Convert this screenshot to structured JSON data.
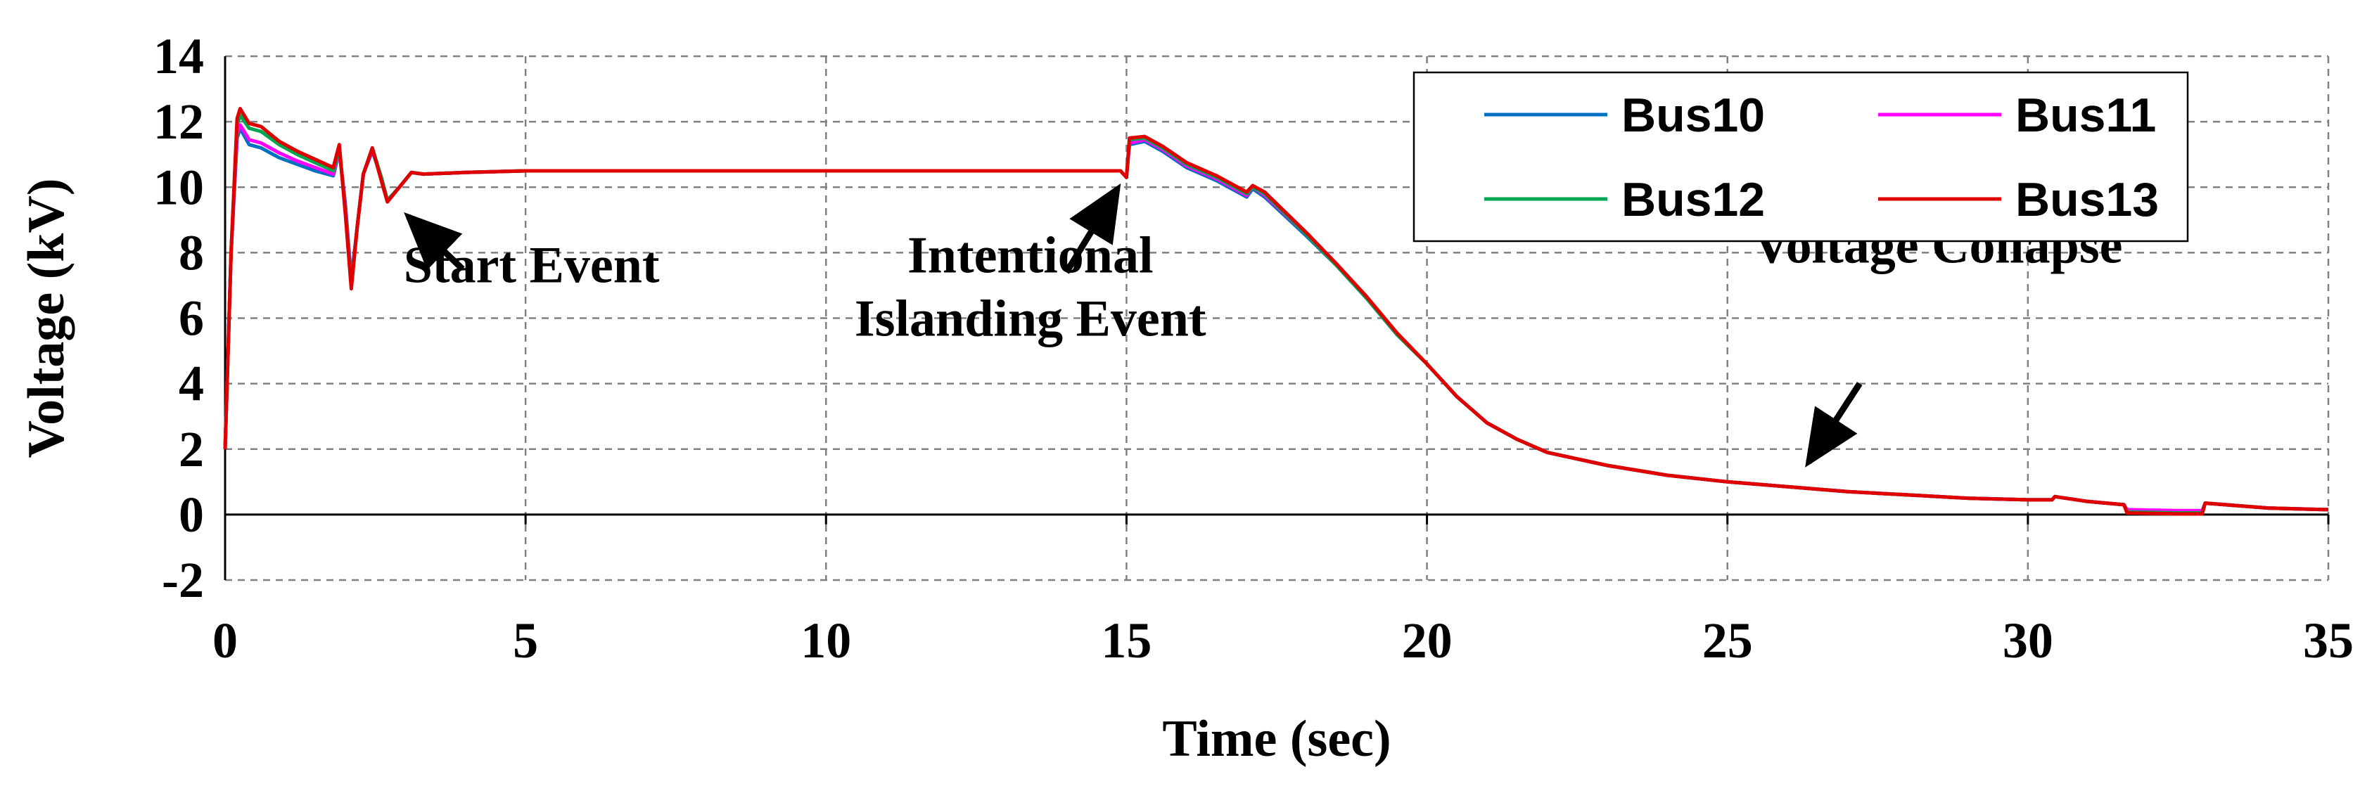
{
  "chart_data": {
    "type": "line",
    "title": "",
    "xlabel": "Time (sec)",
    "ylabel": "Voltage (kV)",
    "xlim": [
      0,
      35
    ],
    "ylim": [
      -2,
      14
    ],
    "xticks": [
      0,
      5,
      10,
      15,
      20,
      25,
      30,
      35
    ],
    "yticks": [
      -2,
      0,
      2,
      4,
      6,
      8,
      10,
      12,
      14
    ],
    "grid": true,
    "legend_position": "top-right",
    "series": [
      {
        "name": "Bus10",
        "color": "#0070C0",
        "points": [
          [
            0,
            2.0
          ],
          [
            0.1,
            8.0
          ],
          [
            0.2,
            11.5
          ],
          [
            0.25,
            11.8
          ],
          [
            0.4,
            11.3
          ],
          [
            0.6,
            11.2
          ],
          [
            0.9,
            10.9
          ],
          [
            1.2,
            10.7
          ],
          [
            1.5,
            10.5
          ],
          [
            1.8,
            10.35
          ],
          [
            1.9,
            11.1
          ],
          [
            2.0,
            9.5
          ],
          [
            2.1,
            7.2
          ],
          [
            2.2,
            8.8
          ],
          [
            2.3,
            10.4
          ],
          [
            2.45,
            11.1
          ],
          [
            2.6,
            10.3
          ],
          [
            2.7,
            9.6
          ],
          [
            2.9,
            10.0
          ],
          [
            3.1,
            10.45
          ],
          [
            3.3,
            10.4
          ],
          [
            4,
            10.45
          ],
          [
            5,
            10.5
          ],
          [
            10,
            10.5
          ],
          [
            14.9,
            10.5
          ],
          [
            15.0,
            10.3
          ],
          [
            15.05,
            11.3
          ],
          [
            15.3,
            11.4
          ],
          [
            15.6,
            11.1
          ],
          [
            16.0,
            10.6
          ],
          [
            16.5,
            10.2
          ],
          [
            17.0,
            9.7
          ],
          [
            17.1,
            9.95
          ],
          [
            17.3,
            9.7
          ],
          [
            18.0,
            8.5
          ],
          [
            18.5,
            7.6
          ],
          [
            19.0,
            6.6
          ],
          [
            19.5,
            5.5
          ],
          [
            20.0,
            4.6
          ],
          [
            20.5,
            3.6
          ],
          [
            21.0,
            2.8
          ],
          [
            21.5,
            2.3
          ],
          [
            22.0,
            1.9
          ],
          [
            23.0,
            1.5
          ],
          [
            24.0,
            1.2
          ],
          [
            25.0,
            1.0
          ],
          [
            26.0,
            0.85
          ],
          [
            27.0,
            0.7
          ],
          [
            28.0,
            0.6
          ],
          [
            29.0,
            0.5
          ],
          [
            30.0,
            0.45
          ],
          [
            30.4,
            0.45
          ],
          [
            30.45,
            0.55
          ],
          [
            31.0,
            0.4
          ],
          [
            31.6,
            0.3
          ],
          [
            31.65,
            0.1
          ],
          [
            32.5,
            0.05
          ],
          [
            32.9,
            0.05
          ],
          [
            32.95,
            0.35
          ],
          [
            34.0,
            0.2
          ],
          [
            35.0,
            0.15
          ]
        ]
      },
      {
        "name": "Bus11",
        "color": "#FF00FF",
        "points": [
          [
            0,
            2.0
          ],
          [
            0.1,
            8.0
          ],
          [
            0.2,
            11.6
          ],
          [
            0.25,
            11.9
          ],
          [
            0.4,
            11.45
          ],
          [
            0.6,
            11.35
          ],
          [
            0.9,
            11.05
          ],
          [
            1.2,
            10.8
          ],
          [
            1.5,
            10.6
          ],
          [
            1.8,
            10.4
          ],
          [
            1.9,
            11.15
          ],
          [
            2.0,
            9.4
          ],
          [
            2.1,
            7.1
          ],
          [
            2.2,
            8.8
          ],
          [
            2.3,
            10.4
          ],
          [
            2.45,
            11.15
          ],
          [
            2.6,
            10.3
          ],
          [
            2.7,
            9.6
          ],
          [
            2.9,
            10.0
          ],
          [
            3.1,
            10.45
          ],
          [
            3.3,
            10.4
          ],
          [
            4,
            10.45
          ],
          [
            5,
            10.5
          ],
          [
            10,
            10.5
          ],
          [
            14.9,
            10.5
          ],
          [
            15.0,
            10.3
          ],
          [
            15.05,
            11.35
          ],
          [
            15.3,
            11.45
          ],
          [
            15.6,
            11.15
          ],
          [
            16.0,
            10.65
          ],
          [
            16.5,
            10.25
          ],
          [
            17.0,
            9.75
          ],
          [
            17.1,
            10.0
          ],
          [
            17.3,
            9.75
          ],
          [
            18.0,
            8.55
          ],
          [
            18.5,
            7.6
          ],
          [
            19.0,
            6.6
          ],
          [
            19.5,
            5.5
          ],
          [
            20.0,
            4.6
          ],
          [
            20.5,
            3.6
          ],
          [
            21.0,
            2.8
          ],
          [
            21.5,
            2.3
          ],
          [
            22.0,
            1.9
          ],
          [
            23.0,
            1.5
          ],
          [
            24.0,
            1.2
          ],
          [
            25.0,
            1.0
          ],
          [
            26.0,
            0.85
          ],
          [
            27.0,
            0.7
          ],
          [
            28.0,
            0.6
          ],
          [
            29.0,
            0.5
          ],
          [
            30.0,
            0.45
          ],
          [
            30.4,
            0.45
          ],
          [
            30.45,
            0.55
          ],
          [
            31.0,
            0.4
          ],
          [
            31.6,
            0.3
          ],
          [
            31.65,
            0.15
          ],
          [
            32.5,
            0.12
          ],
          [
            32.9,
            0.12
          ],
          [
            32.95,
            0.35
          ],
          [
            34.0,
            0.2
          ],
          [
            35.0,
            0.15
          ]
        ]
      },
      {
        "name": "Bus12",
        "color": "#00A650",
        "points": [
          [
            0,
            2.0
          ],
          [
            0.1,
            8.0
          ],
          [
            0.2,
            11.9
          ],
          [
            0.25,
            12.2
          ],
          [
            0.4,
            11.8
          ],
          [
            0.6,
            11.7
          ],
          [
            0.9,
            11.3
          ],
          [
            1.2,
            11.0
          ],
          [
            1.5,
            10.75
          ],
          [
            1.8,
            10.5
          ],
          [
            1.9,
            11.2
          ],
          [
            2.0,
            9.3
          ],
          [
            2.1,
            7.0
          ],
          [
            2.2,
            8.8
          ],
          [
            2.3,
            10.4
          ],
          [
            2.45,
            11.2
          ],
          [
            2.6,
            10.3
          ],
          [
            2.7,
            9.6
          ],
          [
            2.9,
            10.0
          ],
          [
            3.1,
            10.45
          ],
          [
            3.3,
            10.4
          ],
          [
            4,
            10.45
          ],
          [
            5,
            10.5
          ],
          [
            10,
            10.5
          ],
          [
            14.9,
            10.5
          ],
          [
            15.0,
            10.3
          ],
          [
            15.05,
            11.45
          ],
          [
            15.3,
            11.5
          ],
          [
            15.6,
            11.2
          ],
          [
            16.0,
            10.7
          ],
          [
            16.5,
            10.3
          ],
          [
            17.0,
            9.8
          ],
          [
            17.1,
            10.0
          ],
          [
            17.3,
            9.8
          ],
          [
            18.0,
            8.55
          ],
          [
            18.5,
            7.6
          ],
          [
            19.0,
            6.6
          ],
          [
            19.5,
            5.5
          ],
          [
            20.0,
            4.6
          ],
          [
            20.5,
            3.6
          ],
          [
            21.0,
            2.8
          ],
          [
            21.5,
            2.3
          ],
          [
            22.0,
            1.9
          ],
          [
            23.0,
            1.5
          ],
          [
            24.0,
            1.2
          ],
          [
            25.0,
            1.0
          ],
          [
            26.0,
            0.85
          ],
          [
            27.0,
            0.7
          ],
          [
            28.0,
            0.6
          ],
          [
            29.0,
            0.5
          ],
          [
            30.0,
            0.45
          ],
          [
            30.4,
            0.45
          ],
          [
            30.45,
            0.55
          ],
          [
            31.0,
            0.4
          ],
          [
            31.6,
            0.3
          ],
          [
            31.65,
            0.08
          ],
          [
            32.5,
            0.05
          ],
          [
            32.9,
            0.05
          ],
          [
            32.95,
            0.35
          ],
          [
            34.0,
            0.2
          ],
          [
            35.0,
            0.15
          ]
        ]
      },
      {
        "name": "Bus13",
        "color": "#E00000",
        "points": [
          [
            0,
            2.0
          ],
          [
            0.1,
            8.0
          ],
          [
            0.2,
            12.1
          ],
          [
            0.25,
            12.4
          ],
          [
            0.4,
            11.95
          ],
          [
            0.6,
            11.85
          ],
          [
            0.9,
            11.4
          ],
          [
            1.2,
            11.1
          ],
          [
            1.5,
            10.85
          ],
          [
            1.8,
            10.6
          ],
          [
            1.9,
            11.3
          ],
          [
            2.0,
            9.2
          ],
          [
            2.1,
            6.9
          ],
          [
            2.2,
            8.8
          ],
          [
            2.3,
            10.4
          ],
          [
            2.45,
            11.2
          ],
          [
            2.6,
            10.2
          ],
          [
            2.7,
            9.55
          ],
          [
            2.9,
            10.0
          ],
          [
            3.1,
            10.45
          ],
          [
            3.3,
            10.4
          ],
          [
            4,
            10.45
          ],
          [
            5,
            10.5
          ],
          [
            10,
            10.5
          ],
          [
            14.9,
            10.5
          ],
          [
            15.0,
            10.3
          ],
          [
            15.05,
            11.5
          ],
          [
            15.3,
            11.55
          ],
          [
            15.6,
            11.25
          ],
          [
            16.0,
            10.75
          ],
          [
            16.5,
            10.35
          ],
          [
            17.0,
            9.85
          ],
          [
            17.1,
            10.05
          ],
          [
            17.3,
            9.85
          ],
          [
            18.0,
            8.6
          ],
          [
            18.5,
            7.65
          ],
          [
            19.0,
            6.65
          ],
          [
            19.5,
            5.55
          ],
          [
            20.0,
            4.6
          ],
          [
            20.5,
            3.6
          ],
          [
            21.0,
            2.8
          ],
          [
            21.5,
            2.3
          ],
          [
            22.0,
            1.9
          ],
          [
            23.0,
            1.5
          ],
          [
            24.0,
            1.2
          ],
          [
            25.0,
            1.0
          ],
          [
            26.0,
            0.85
          ],
          [
            27.0,
            0.7
          ],
          [
            28.0,
            0.6
          ],
          [
            29.0,
            0.5
          ],
          [
            30.0,
            0.45
          ],
          [
            30.4,
            0.45
          ],
          [
            30.45,
            0.55
          ],
          [
            31.0,
            0.4
          ],
          [
            31.6,
            0.3
          ],
          [
            31.65,
            0.05
          ],
          [
            32.5,
            0.02
          ],
          [
            32.9,
            0.02
          ],
          [
            32.95,
            0.35
          ],
          [
            34.0,
            0.2
          ],
          [
            35.0,
            0.15
          ]
        ]
      }
    ],
    "annotations": [
      {
        "lines": [
          "Start Event"
        ],
        "text_at": [
          5.1,
          7.1
        ],
        "arrow_from": [
          3.95,
          7.5
        ],
        "arrow_to": [
          3.05,
          9.1
        ]
      },
      {
        "lines": [
          "Intentional",
          "Islanding Event"
        ],
        "text_at": [
          13.4,
          7.4
        ],
        "arrow_from": [
          14.0,
          7.4
        ],
        "arrow_to": [
          14.85,
          9.95
        ]
      },
      {
        "lines": [
          "Voltage Collapse"
        ],
        "text_at": [
          28.5,
          7.7
        ],
        "arrow_from": [
          27.2,
          4.0
        ],
        "arrow_to": [
          26.35,
          1.6
        ]
      }
    ]
  }
}
